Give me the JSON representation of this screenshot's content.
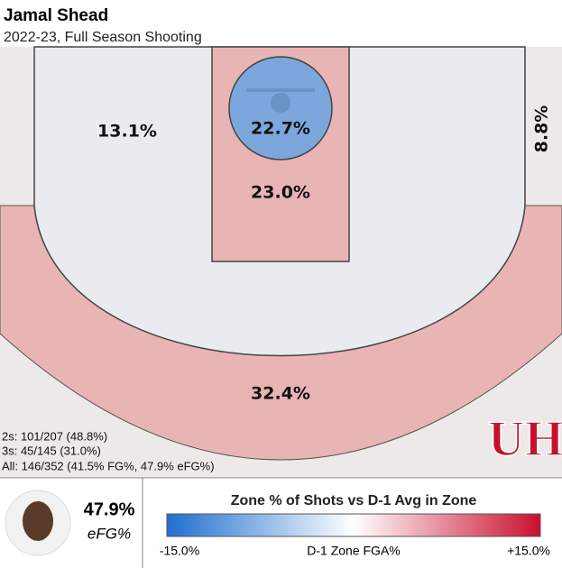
{
  "header": {
    "title": "Jamal Shead",
    "subtitle": "2022-23, Full Season Shooting"
  },
  "zones": [
    {
      "label": "13.1%",
      "color": "#e9ebef"
    },
    {
      "label": "22.7%",
      "color": "#7ba7dc"
    },
    {
      "label": "23.0%",
      "color": "#e8b4b4"
    },
    {
      "label": "8.8%",
      "color": "#ede9e9"
    },
    {
      "label": "32.4%",
      "color": "#e8b4b4"
    }
  ],
  "stats": [
    "2s: 101/207 (48.8%)",
    "3s: 45/145 (31.0%)",
    "All: 146/352 (41.5% FG%, 47.9% eFG%)"
  ],
  "logo_text": "UH",
  "player": {
    "efg": "47.9%",
    "efg_label": "eFG%"
  },
  "legend": {
    "title": "Zone % of Shots vs D-1 Avg in Zone",
    "min_label": "-15.0%",
    "axis_label": "D-1 Zone FGA%",
    "max_label": "+15.0%",
    "scale_colors": [
      "#1f6fd0",
      "#ffffff",
      "#c8102e"
    ]
  }
}
